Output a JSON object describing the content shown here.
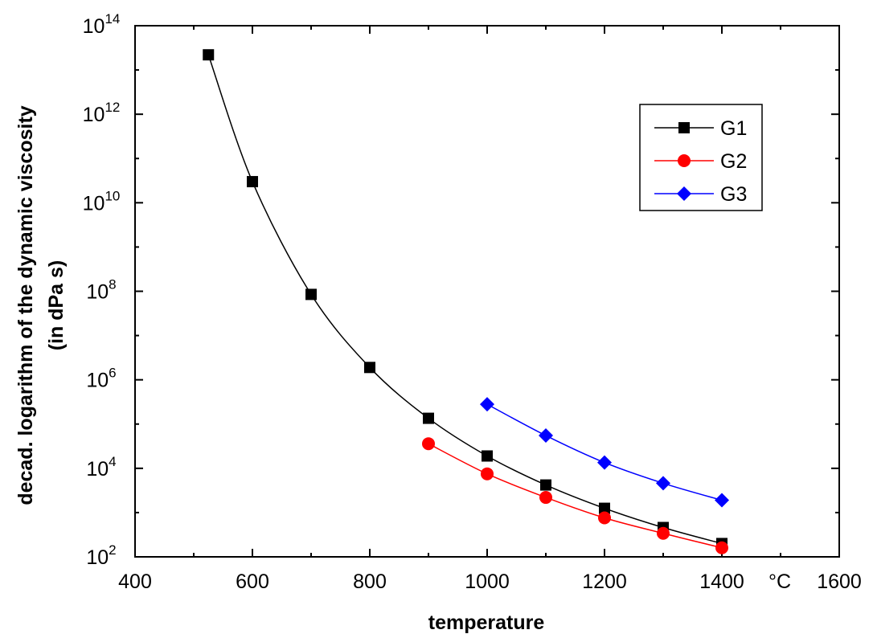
{
  "chart_data": {
    "type": "line",
    "title": "",
    "xlabel": "temperature",
    "ylabel_line1": "decad. logarithm of the dynamic viscosity",
    "ylabel_line2": "(in dPa s)",
    "x_unit": "°C",
    "xlim": [
      400,
      1600
    ],
    "ylim_log10": [
      2,
      14
    ],
    "y_scale": "log",
    "x_ticks": [
      400,
      600,
      800,
      1000,
      1200,
      1400,
      1600
    ],
    "x_tick_labels": [
      "400",
      "600",
      "800",
      "1000",
      "1200",
      "1400",
      "1600"
    ],
    "y_ticks_exp": [
      2,
      4,
      6,
      8,
      10,
      12,
      14
    ],
    "grid": false,
    "legend_position": "top-right",
    "series": [
      {
        "name": "G1",
        "color": "#000000",
        "marker": "square",
        "x": [
          525,
          600,
          700,
          800,
          900,
          1000,
          1100,
          1200,
          1300,
          1400
        ],
        "y": [
          22000000000000.0,
          30000000000.0,
          85000000.0,
          1900000.0,
          135000.0,
          19000.0,
          4200.0,
          1250.0,
          460.0,
          200.0
        ]
      },
      {
        "name": "G2",
        "color": "#ff0000",
        "marker": "circle",
        "x": [
          900,
          1000,
          1100,
          1200,
          1300,
          1400
        ],
        "y": [
          36000.0,
          7500.0,
          2200.0,
          760.0,
          340.0,
          160.0
        ]
      },
      {
        "name": "G3",
        "color": "#0000ff",
        "marker": "diamond",
        "x": [
          1000,
          1100,
          1200,
          1300,
          1400
        ],
        "y": [
          280000.0,
          55000.0,
          13500.0,
          4600.0,
          1900.0
        ]
      }
    ]
  }
}
